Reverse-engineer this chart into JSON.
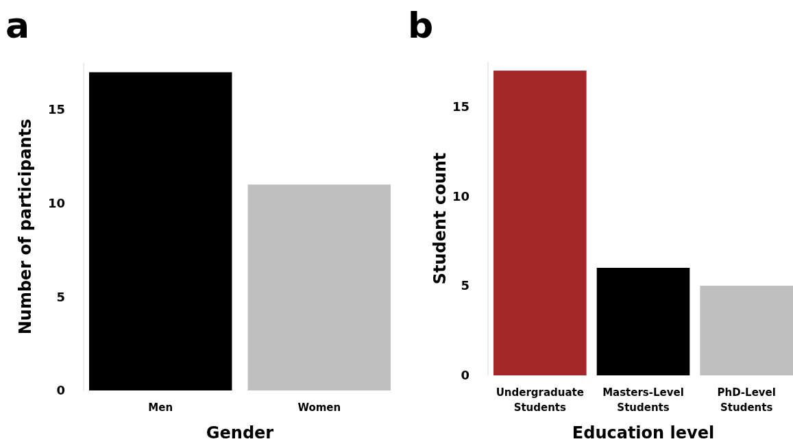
{
  "chart_data": [
    {
      "type": "bar",
      "title": "a",
      "xlabel": "Gender",
      "ylabel": "Number of participants",
      "categories": [
        "Men",
        "Women"
      ],
      "values": [
        17,
        11
      ],
      "colors": [
        "#000000",
        "#bfbfbf"
      ],
      "ylim": [
        0,
        17.5
      ],
      "yticks": [
        0,
        5,
        10,
        15
      ],
      "grid": false
    },
    {
      "type": "bar",
      "title": "b",
      "xlabel": "Education level",
      "ylabel": "Student count",
      "categories": [
        "Undergraduate Students",
        "Masters-Level Students",
        "PhD-Level Students"
      ],
      "values": [
        17,
        6,
        5
      ],
      "colors": [
        "#a4282a",
        "#000000",
        "#bfbfbf"
      ],
      "ylim": [
        0,
        17.5
      ],
      "yticks": [
        0,
        5,
        10,
        15
      ],
      "grid": false
    }
  ]
}
